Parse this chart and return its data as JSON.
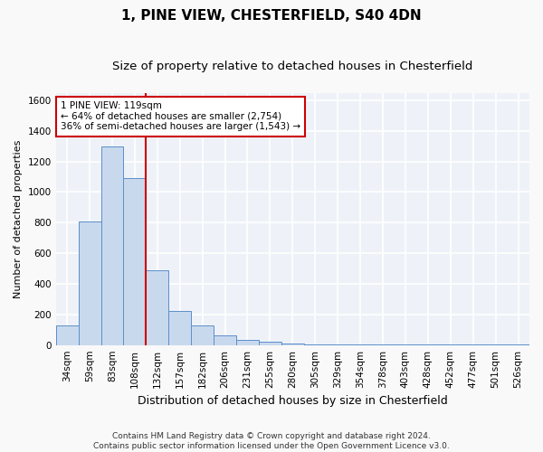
{
  "title1": "1, PINE VIEW, CHESTERFIELD, S40 4DN",
  "title2": "Size of property relative to detached houses in Chesterfield",
  "xlabel": "Distribution of detached houses by size in Chesterfield",
  "ylabel": "Number of detached properties",
  "bar_color": "#c9d9ed",
  "bar_edge_color": "#5b8fc9",
  "background_color": "#eef2f8",
  "grid_color": "#ffffff",
  "categories": [
    "34sqm",
    "59sqm",
    "83sqm",
    "108sqm",
    "132sqm",
    "157sqm",
    "182sqm",
    "206sqm",
    "231sqm",
    "255sqm",
    "280sqm",
    "305sqm",
    "329sqm",
    "354sqm",
    "378sqm",
    "403sqm",
    "428sqm",
    "452sqm",
    "477sqm",
    "501sqm",
    "526sqm"
  ],
  "values": [
    130,
    810,
    1300,
    1090,
    490,
    225,
    130,
    65,
    35,
    20,
    12,
    5,
    5,
    5,
    5,
    5,
    2,
    2,
    2,
    2,
    2
  ],
  "vline_x": 3.5,
  "vline_color": "#cc0000",
  "annotation_text": "1 PINE VIEW: 119sqm\n← 64% of detached houses are smaller (2,754)\n36% of semi-detached houses are larger (1,543) →",
  "annotation_box_color": "#ffffff",
  "annotation_box_edge": "#cc0000",
  "ylim": [
    0,
    1650
  ],
  "yticks": [
    0,
    200,
    400,
    600,
    800,
    1000,
    1200,
    1400,
    1600
  ],
  "footer": "Contains HM Land Registry data © Crown copyright and database right 2024.\nContains public sector information licensed under the Open Government Licence v3.0.",
  "title1_fontsize": 11,
  "title2_fontsize": 9.5,
  "xlabel_fontsize": 9,
  "ylabel_fontsize": 8,
  "tick_fontsize": 7.5,
  "annotation_fontsize": 7.5,
  "footer_fontsize": 6.5
}
